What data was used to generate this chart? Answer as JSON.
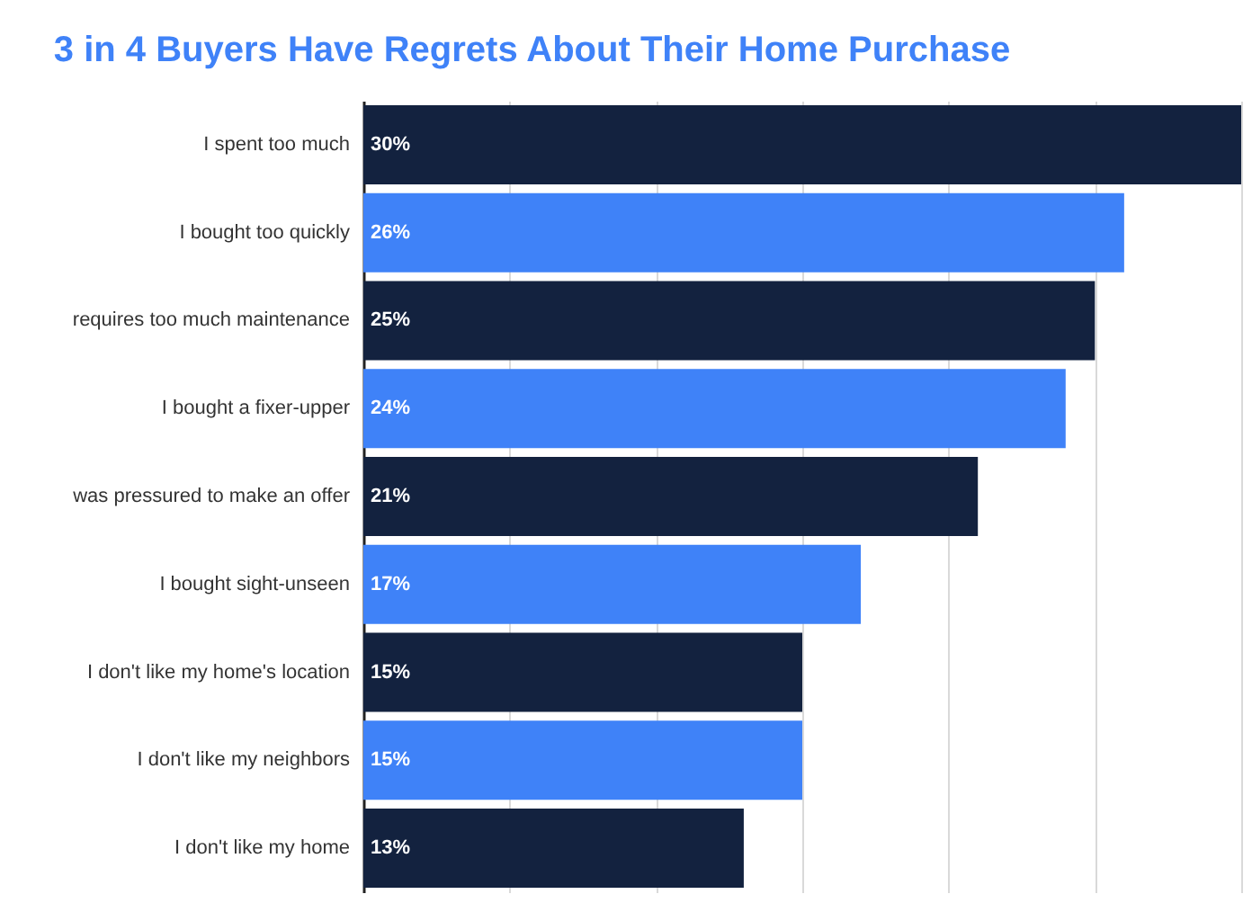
{
  "chart_data": {
    "type": "bar",
    "orientation": "horizontal",
    "title": "3 in 4 Buyers Have Regrets About Their Home Purchase",
    "categories": [
      "I spent too much",
      "I bought too quickly",
      "requires too much maintenance",
      "I bought a fixer-upper",
      "was pressured to make an offer",
      "I bought sight-unseen",
      "I don't like my home's location",
      "I don't like my neighbors",
      "I don't like my home"
    ],
    "values": [
      30,
      26,
      25,
      24,
      21,
      17,
      15,
      15,
      13
    ],
    "value_labels": [
      "30%",
      "26%",
      "25%",
      "24%",
      "21%",
      "17%",
      "15%",
      "15%",
      "13%"
    ],
    "colors": [
      "#13223f",
      "#3f82f8",
      "#13223f",
      "#3f82f8",
      "#13223f",
      "#3f82f8",
      "#13223f",
      "#3f82f8",
      "#13223f"
    ],
    "xlim": [
      0,
      30
    ],
    "xticks": [
      {
        "value": 0,
        "label": null
      },
      {
        "value": 5,
        "label": null
      },
      {
        "value": 10,
        "label": null
      },
      {
        "value": 15,
        "label": null
      },
      {
        "value": 20,
        "label": null
      },
      {
        "value": 25,
        "label": null
      },
      {
        "value": 30,
        "label": null
      }
    ],
    "grid": "x",
    "tick_labels": "y"
  }
}
